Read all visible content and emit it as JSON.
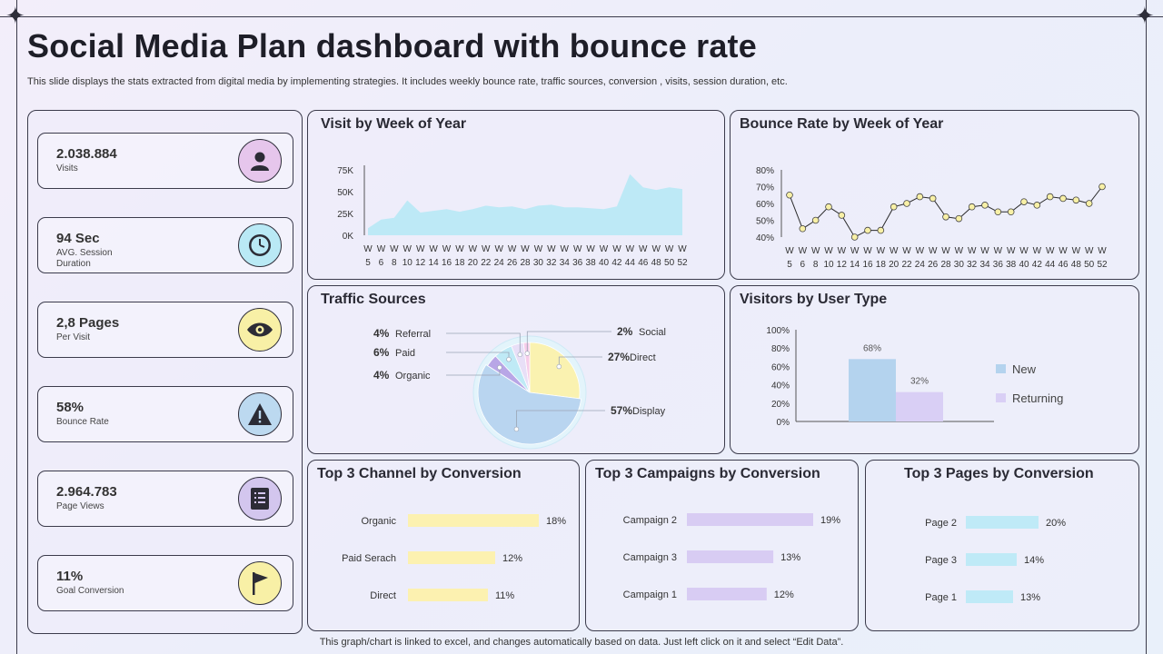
{
  "header": {
    "title": "Social Media Plan dashboard with bounce rate",
    "subtitle": "This slide displays the stats extracted from digital media by implementing strategies. It includes  weekly bounce rate, traffic sources, conversion , visits, session duration, etc.",
    "footer": "This graph/chart is linked to excel,  and changes automatically based on data. Just left click on it and select “Edit Data”."
  },
  "kpis": [
    {
      "value": "2.038.884",
      "label": "Visits",
      "icon": "user-icon",
      "color": "#e6c6ec"
    },
    {
      "value": "94 Sec",
      "label": "AVG. Session Duration",
      "icon": "clock-icon",
      "color": "#b9e9f5"
    },
    {
      "value": "2,8 Pages",
      "label": "Per Visit",
      "icon": "eye-icon",
      "color": "#f8f0a6"
    },
    {
      "value": "58%",
      "label": "Bounce Rate",
      "icon": "warning-icon",
      "color": "#bcd9f0"
    },
    {
      "value": "2.964.783",
      "label": "Page Views",
      "icon": "document-icon",
      "color": "#d3c6ee"
    },
    {
      "value": "11%",
      "label": "Goal Conversion",
      "icon": "flag-icon",
      "color": "#f8f0a6"
    }
  ],
  "panels": {
    "visits_title": "Visit by Week of Year",
    "bounce_title": "Bounce Rate by Week of Year",
    "traffic_title": "Traffic Sources",
    "visitors_title": "Visitors by User Type",
    "channel_title": "Top 3 Channel by Conversion",
    "campaign_title": "Top 3 Campaigns by Conversion",
    "pages_title": "Top 3 Pages by Conversion"
  },
  "chart_data": [
    {
      "id": "visits",
      "type": "area",
      "x": [
        "W 5",
        "W 6",
        "W 8",
        "W 10",
        "W 12",
        "W 14",
        "W 16",
        "W 18",
        "W 20",
        "W 22",
        "W 24",
        "W 26",
        "W 28",
        "W 30",
        "W 32",
        "W 34",
        "W 36",
        "W 38",
        "W 40",
        "W 42",
        "W 44",
        "W 46",
        "W 48",
        "W 50",
        "W 52"
      ],
      "y": [
        8000,
        18000,
        20000,
        40000,
        26000,
        28000,
        30000,
        27000,
        30000,
        34000,
        32000,
        33000,
        30000,
        34000,
        35000,
        32000,
        32000,
        31000,
        30000,
        33000,
        70000,
        55000,
        52000,
        55000,
        53000
      ],
      "yticks": [
        "0K",
        "25K",
        "50K",
        "75K"
      ],
      "ylim": [
        0,
        75000
      ],
      "color": "#bde9f6"
    },
    {
      "id": "bounce",
      "type": "line",
      "x": [
        "W 5",
        "W 6",
        "W 8",
        "W 10",
        "W 12",
        "W 14",
        "W 16",
        "W 18",
        "W 20",
        "W 22",
        "W 24",
        "W 26",
        "W 28",
        "W 30",
        "W 32",
        "W 34",
        "W 36",
        "W 38",
        "W 40",
        "W 42",
        "W 44",
        "W 46",
        "W 48",
        "W 50",
        "W 52"
      ],
      "y": [
        65,
        45,
        50,
        58,
        53,
        40,
        44,
        44,
        58,
        60,
        64,
        63,
        52,
        51,
        58,
        59,
        55,
        55,
        61,
        59,
        64,
        63,
        62,
        60,
        70
      ],
      "yticks": [
        "40%",
        "50%",
        "60%",
        "70%",
        "80%"
      ],
      "ylim": [
        40,
        80
      ],
      "color": "#f8f0a6"
    },
    {
      "id": "traffic",
      "type": "pie",
      "slices": [
        {
          "label": "Display",
          "value": 57,
          "text": "57%",
          "color": "#b9d5f0"
        },
        {
          "label": "Direct",
          "value": 27,
          "text": "27%",
          "color": "#faf2b0"
        },
        {
          "label": "Social",
          "value": 2,
          "text": "2%",
          "color": "#f6cdea"
        },
        {
          "label": "Referral",
          "value": 4,
          "text": "4%",
          "color": "#e8dff7"
        },
        {
          "label": "Paid",
          "value": 6,
          "text": "6%",
          "color": "#bfeaf6"
        },
        {
          "label": "Organic",
          "value": 4,
          "text": "4%",
          "color": "#b8a6e6"
        }
      ]
    },
    {
      "id": "visitors",
      "type": "bar",
      "categories": [
        "New",
        "Returning"
      ],
      "values": [
        68,
        32
      ],
      "labels": [
        "68%",
        "32%"
      ],
      "colors": [
        "#b4d3ee",
        "#d9cff5"
      ],
      "yticks": [
        "0%",
        "20%",
        "40%",
        "60%",
        "80%",
        "100%"
      ],
      "ylim": [
        0,
        100
      ]
    },
    {
      "id": "channel",
      "type": "bar",
      "categories": [
        "Organic",
        "Paid Serach",
        "Direct"
      ],
      "values": [
        18,
        12,
        11
      ],
      "labels": [
        "18%",
        "12%",
        "11%"
      ],
      "color": "#fcf1b0"
    },
    {
      "id": "campaign",
      "type": "bar",
      "categories": [
        "Campaign 2",
        "Campaign 3",
        "Campaign 1"
      ],
      "values": [
        19,
        13,
        12
      ],
      "labels": [
        "19%",
        "13%",
        "12%"
      ],
      "color": "#d8ccf3"
    },
    {
      "id": "pages",
      "type": "bar",
      "categories": [
        "Page 2",
        "Page 3",
        "Page 1"
      ],
      "values": [
        20,
        14,
        13
      ],
      "labels": [
        "20%",
        "14%",
        "13%"
      ],
      "color": "#bfeaf7"
    }
  ]
}
